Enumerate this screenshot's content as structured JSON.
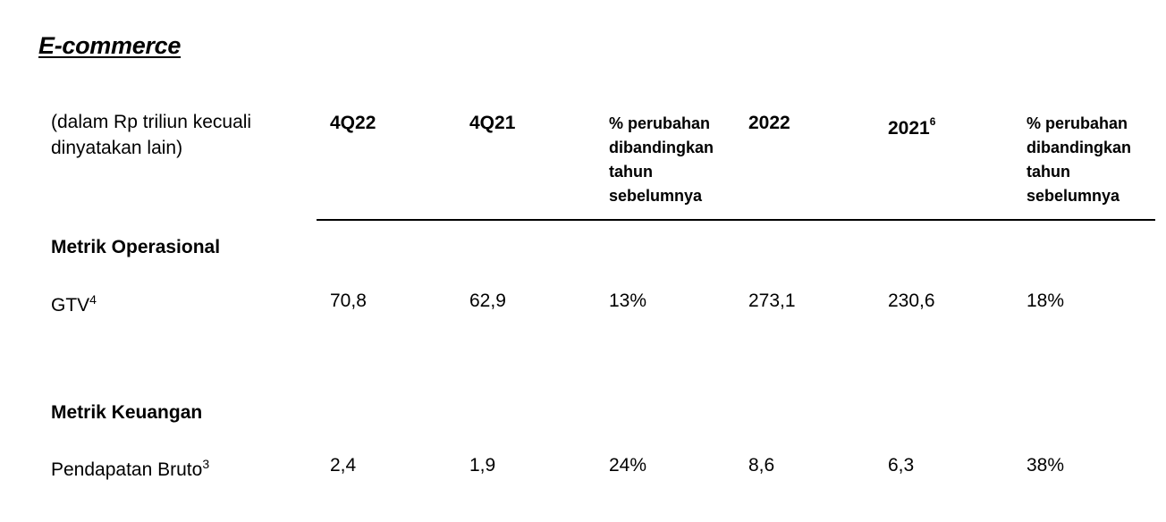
{
  "title": "E-commerce",
  "table": {
    "stub_header": "(dalam Rp triliun kecuali dinyatakan lain)",
    "col_4q22": "4Q22",
    "col_4q21": "4Q21",
    "col_pct_q": "% perubahan dibandingkan tahun sebelumnya",
    "col_2022": "2022",
    "col_2021": "2021",
    "col_2021_note": "6",
    "col_pct_y": "% perubahan dibandingkan tahun sebelumnya"
  },
  "sections": [
    {
      "name": "Metrik Operasional",
      "row": {
        "label": "GTV",
        "note": "4",
        "values": [
          "70,8",
          "62,9",
          "13%",
          "273,1",
          "230,6",
          "18%"
        ]
      }
    },
    {
      "name": "Metrik Keuangan",
      "row": {
        "label": "Pendapatan Bruto",
        "note": "3",
        "values": [
          "2,4",
          "1,9",
          "24%",
          "8,6",
          "6,3",
          "38%"
        ]
      }
    }
  ]
}
